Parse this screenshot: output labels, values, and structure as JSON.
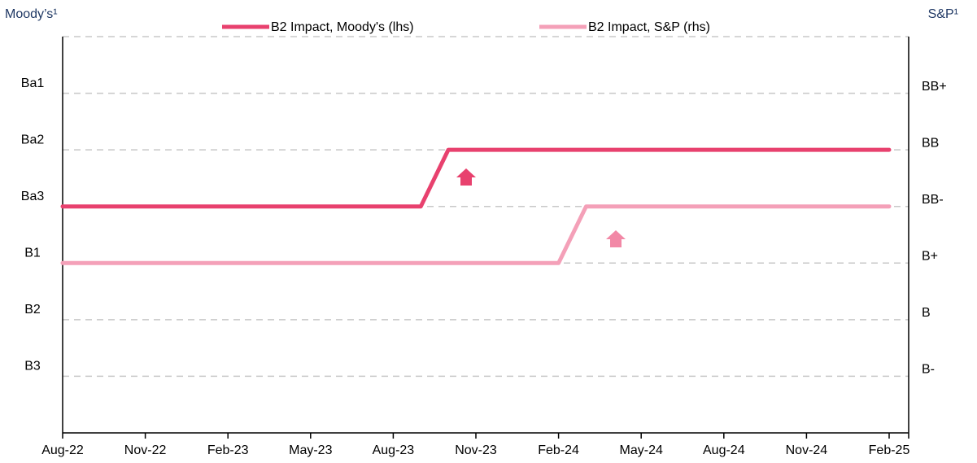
{
  "chart_data": {
    "type": "line",
    "y_axis_title": "Moody’s¹",
    "y2_axis_title": "S&P¹",
    "categories": [
      "Aug-22",
      null,
      null,
      "Nov-22",
      null,
      null,
      "Feb-23",
      null,
      null,
      "May-23",
      null,
      null,
      "Aug-23",
      null,
      null,
      "Nov-23",
      null,
      null,
      "Feb-24",
      null,
      null,
      "May-24",
      null,
      null,
      "Aug-24",
      null,
      null,
      "Nov-24",
      null,
      null,
      "Feb-25"
    ],
    "series": [
      {
        "name": "B2 Impact, Moody's (lhs)",
        "color": "#e8416e",
        "axis": "y",
        "values": [
          4,
          4,
          4,
          4,
          4,
          4,
          4,
          4,
          4,
          4,
          4,
          4,
          4,
          4,
          5,
          5,
          5,
          5,
          5,
          5,
          5,
          5,
          5,
          5,
          5,
          5,
          5,
          5,
          5,
          5,
          5
        ]
      },
      {
        "name": "B2 Impact, S&P (rhs)",
        "color": "#f4a0b8",
        "axis": "y2",
        "values": [
          3,
          3,
          3,
          3,
          3,
          3,
          3,
          3,
          3,
          3,
          3,
          3,
          3,
          3,
          3,
          3,
          3,
          3,
          3,
          4,
          4,
          4,
          4,
          4,
          4,
          4,
          4,
          4,
          4,
          4,
          4
        ]
      }
    ],
    "ylim": [
      0,
      7
    ],
    "yticks": [
      {
        "value": 1,
        "label": "B3"
      },
      {
        "value": 2,
        "label": "B2"
      },
      {
        "value": 3,
        "label": "B1"
      },
      {
        "value": 4,
        "label": "Ba3"
      },
      {
        "value": 5,
        "label": "Ba2"
      },
      {
        "value": 6,
        "label": "Ba1"
      }
    ],
    "y2lim": [
      0,
      7
    ],
    "y2ticks": [
      {
        "value": 1,
        "label": "B-"
      },
      {
        "value": 2,
        "label": "B"
      },
      {
        "value": 3,
        "label": "B+"
      },
      {
        "value": 4,
        "label": "BB-"
      },
      {
        "value": 5,
        "label": "BB"
      },
      {
        "value": 6,
        "label": "BB+"
      }
    ],
    "grid": true,
    "legend": "top"
  }
}
